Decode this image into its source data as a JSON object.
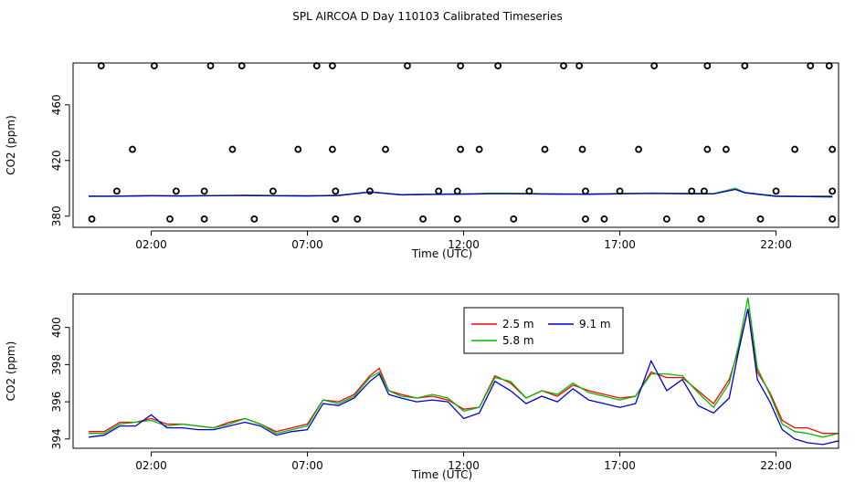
{
  "title": "SPL AIRCOA D  Day 110103  Calibrated Timeseries",
  "chart_data": [
    {
      "type": "line",
      "panel": "top",
      "xlabel": "Time (UTC)",
      "ylabel": "CO2 (ppm)",
      "xlim": [
        -0.5,
        24
      ],
      "ylim": [
        372,
        490
      ],
      "x_ticks": [
        2,
        7,
        12,
        17,
        22
      ],
      "x_tick_labels": [
        "02:00",
        "07:00",
        "12:00",
        "17:00",
        "22:00"
      ],
      "y_ticks": [
        380,
        420,
        460
      ],
      "y_tick_labels": [
        "380",
        "420",
        "460"
      ],
      "grid": false,
      "series": [
        {
          "color": "#ff0000",
          "x": [
            0,
            1,
            2,
            3,
            4,
            5,
            6,
            7,
            8,
            9,
            10,
            11,
            12,
            13,
            14,
            15,
            16,
            17,
            18,
            19,
            20,
            20.7,
            21,
            22,
            23,
            23.8
          ],
          "y": [
            394.5,
            394.5,
            394.8,
            394.6,
            394.9,
            395,
            394.8,
            394.7,
            395,
            397.5,
            395.5,
            395.8,
            396,
            396.5,
            396.3,
            396,
            395.9,
            396.3,
            396.6,
            396.4,
            396.2,
            399.8,
            397,
            394.5,
            394.3,
            394.4
          ]
        },
        {
          "color": "#00bb00",
          "x": [
            0,
            1,
            2,
            3,
            4,
            5,
            6,
            7,
            8,
            9,
            10,
            11,
            12,
            13,
            14,
            15,
            16,
            17,
            18,
            19,
            20,
            20.7,
            21,
            22,
            23,
            23.8
          ],
          "y": [
            394.4,
            394.5,
            394.7,
            394.6,
            394.9,
            395,
            394.8,
            394.6,
            395,
            397.4,
            395.5,
            395.8,
            396,
            396.5,
            396.3,
            396,
            395.9,
            396.3,
            396.6,
            396.4,
            396.2,
            400,
            397,
            394.5,
            394.3,
            394.3
          ]
        },
        {
          "color": "#0000cc",
          "x": [
            0,
            1,
            2,
            3,
            4,
            5,
            6,
            7,
            8,
            9,
            10,
            11,
            12,
            13,
            14,
            15,
            16,
            17,
            18,
            19,
            20,
            20.7,
            21,
            22,
            23,
            23.8
          ],
          "y": [
            394.2,
            394.3,
            394.6,
            394.5,
            394.7,
            394.8,
            394.6,
            394.5,
            394.8,
            397.3,
            395.3,
            395.6,
            395.8,
            396.2,
            396,
            395.8,
            395.7,
            396,
            396.3,
            396.1,
            396,
            399.2,
            396.8,
            394.2,
            394,
            393.8
          ]
        }
      ],
      "points": {
        "x": [
          0.4,
          2.1,
          3.9,
          4.9,
          7.3,
          7.8,
          10.2,
          11.9,
          13.1,
          15.2,
          15.7,
          18.1,
          19.8,
          21,
          23.1,
          23.7,
          1.4,
          4.6,
          6.7,
          7.8,
          9.5,
          11.9,
          12.5,
          14.6,
          15.8,
          17.6,
          19.8,
          20.4,
          22.6,
          23.8,
          0.9,
          2.8,
          3.7,
          5.9,
          7.9,
          9,
          11.2,
          11.8,
          14.1,
          15.9,
          17,
          19.3,
          19.7,
          22,
          23.8,
          0.1,
          2.6,
          3.7,
          5.3,
          7.9,
          8.6,
          10.7,
          11.8,
          13.6,
          15.9,
          16.5,
          18.5,
          19.6,
          21.5,
          23.8
        ],
        "y": [
          488,
          488,
          488,
          488,
          488,
          488,
          488,
          488,
          488,
          488,
          488,
          488,
          488,
          488,
          488,
          488,
          428,
          428,
          428,
          428,
          428,
          428,
          428,
          428,
          428,
          428,
          428,
          428,
          428,
          428,
          398,
          398,
          398,
          398,
          398,
          398,
          398,
          398,
          398,
          398,
          398,
          398,
          398,
          398,
          398,
          378,
          378,
          378,
          378,
          378,
          378,
          378,
          378,
          378,
          378,
          378,
          378,
          378,
          378,
          378
        ]
      }
    },
    {
      "type": "line",
      "panel": "bottom",
      "xlabel": "Time (UTC)",
      "ylabel": "CO2 (ppm)",
      "xlim": [
        -0.5,
        24
      ],
      "ylim": [
        393.5,
        401.8
      ],
      "x_ticks": [
        2,
        7,
        12,
        17,
        22
      ],
      "x_tick_labels": [
        "02:00",
        "07:00",
        "12:00",
        "17:00",
        "22:00"
      ],
      "y_ticks": [
        394,
        396,
        398,
        400
      ],
      "y_tick_labels": [
        "394",
        "396",
        "398",
        "400"
      ],
      "grid": false,
      "legend_position": "top-center",
      "series": [
        {
          "name": "2.5 m",
          "color": "#ff0000",
          "x": [
            0,
            0.5,
            1,
            1.5,
            2,
            2.5,
            3,
            3.5,
            4,
            4.5,
            5,
            5.5,
            6,
            6.5,
            7,
            7.5,
            8,
            8.5,
            9,
            9.3,
            9.6,
            10,
            10.5,
            11,
            11.5,
            12,
            12.5,
            13,
            13.5,
            14,
            14.5,
            15,
            15.5,
            16,
            16.5,
            17,
            17.5,
            18,
            18.5,
            19,
            19.5,
            20,
            20.5,
            20.8,
            21.1,
            21.4,
            21.8,
            22.2,
            22.6,
            23,
            23.5,
            24
          ],
          "y": [
            394.4,
            394.4,
            394.9,
            394.9,
            395.1,
            394.8,
            394.8,
            394.7,
            394.6,
            394.9,
            395.1,
            394.8,
            394.4,
            394.6,
            394.8,
            396.1,
            396,
            396.4,
            397.4,
            397.8,
            396.6,
            396.4,
            396.2,
            396.3,
            396.1,
            395.6,
            395.7,
            397.4,
            397,
            396.2,
            396.6,
            396.3,
            396.9,
            396.6,
            396.4,
            396.2,
            396.3,
            397.6,
            397.3,
            397.3,
            396.6,
            395.9,
            397.2,
            398.8,
            401,
            397.6,
            396.5,
            395,
            394.6,
            394.6,
            394.3,
            394.3
          ]
        },
        {
          "name": "5.8 m",
          "color": "#00bb00",
          "x": [
            0,
            0.5,
            1,
            1.5,
            2,
            2.5,
            3,
            3.5,
            4,
            4.5,
            5,
            5.5,
            6,
            6.5,
            7,
            7.5,
            8,
            8.5,
            9,
            9.3,
            9.6,
            10,
            10.5,
            11,
            11.5,
            12,
            12.5,
            13,
            13.5,
            14,
            14.5,
            15,
            15.5,
            16,
            16.5,
            17,
            17.5,
            18,
            18.5,
            19,
            19.5,
            20,
            20.5,
            20.8,
            21.1,
            21.4,
            21.8,
            22.2,
            22.6,
            23,
            23.5,
            24
          ],
          "y": [
            394.3,
            394.3,
            394.8,
            394.9,
            395,
            394.7,
            394.8,
            394.7,
            394.6,
            394.8,
            395.1,
            394.8,
            394.3,
            394.5,
            394.7,
            396.1,
            395.9,
            396.3,
            397.3,
            397.6,
            396.6,
            396.3,
            396.2,
            396.4,
            396.2,
            395.5,
            395.7,
            397.3,
            397.1,
            396.2,
            396.6,
            396.4,
            397,
            396.5,
            396.3,
            396.1,
            396.3,
            397.5,
            397.5,
            397.4,
            396.5,
            395.7,
            397,
            399,
            401.6,
            397.8,
            396.4,
            394.8,
            394.4,
            394.3,
            394.1,
            394.3
          ]
        },
        {
          "name": "9.1 m",
          "color": "#0000cc",
          "x": [
            0,
            0.5,
            1,
            1.5,
            2,
            2.5,
            3,
            3.5,
            4,
            4.5,
            5,
            5.5,
            6,
            6.5,
            7,
            7.5,
            8,
            8.5,
            9,
            9.3,
            9.6,
            10,
            10.5,
            11,
            11.5,
            12,
            12.5,
            13,
            13.5,
            14,
            14.5,
            15,
            15.5,
            16,
            16.5,
            17,
            17.5,
            18,
            18.5,
            19,
            19.5,
            20,
            20.5,
            20.8,
            21.1,
            21.4,
            21.8,
            22.2,
            22.6,
            23,
            23.5,
            24
          ],
          "y": [
            394.1,
            394.2,
            394.7,
            394.7,
            395.3,
            394.6,
            394.6,
            394.5,
            394.5,
            394.7,
            394.9,
            394.7,
            394.2,
            394.4,
            394.5,
            395.9,
            395.8,
            396.2,
            397.1,
            397.5,
            396.4,
            396.2,
            396,
            396.1,
            396,
            395.1,
            395.4,
            397.1,
            396.6,
            395.9,
            396.3,
            396,
            396.7,
            396.1,
            395.9,
            395.7,
            395.9,
            398.2,
            396.6,
            397.2,
            395.8,
            395.4,
            396.2,
            398.7,
            401,
            397.2,
            396,
            394.5,
            394,
            393.8,
            393.7,
            393.9
          ]
        }
      ]
    }
  ]
}
